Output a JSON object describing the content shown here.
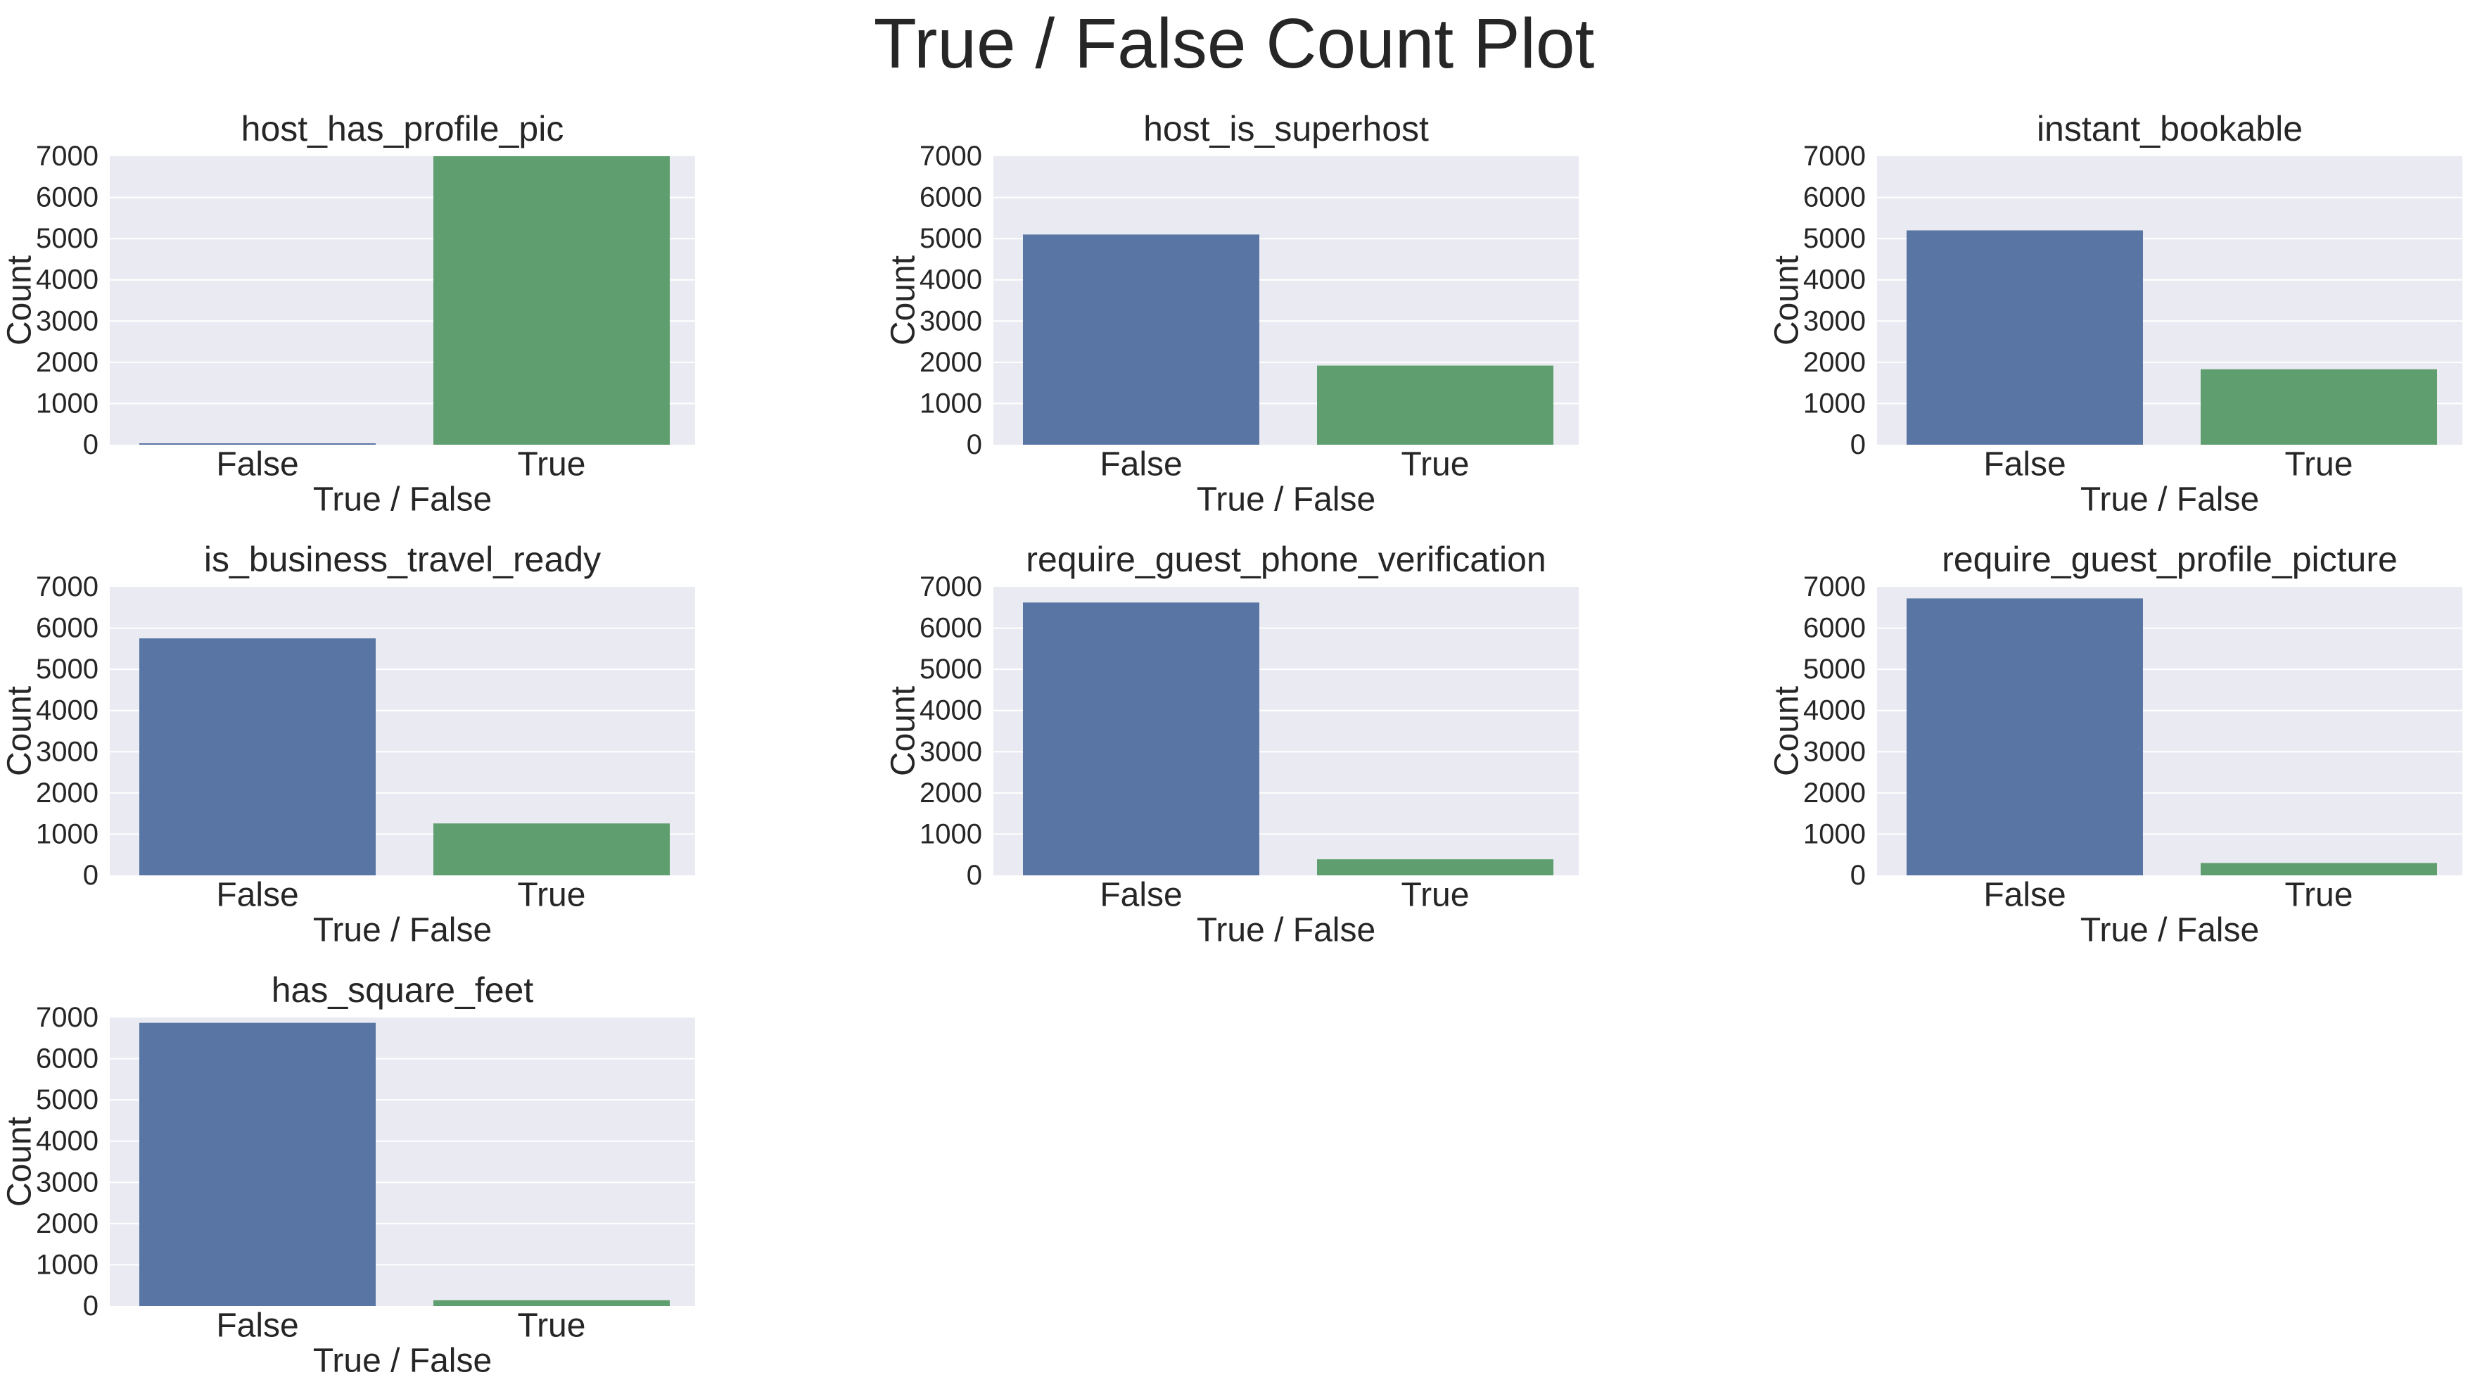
{
  "suptitle": "True / False Count Plot",
  "colors": {
    "background": "#ffffff",
    "axes_face": "#EAEAF2",
    "grid": "#ffffff",
    "false_bar": "#5975A4",
    "true_bar": "#5F9E6E",
    "text": "#262626"
  },
  "chart_data": [
    {
      "type": "bar",
      "title": "host_has_profile_pic",
      "xlabel": "True / False",
      "ylabel": "Count",
      "categories": [
        "False",
        "True"
      ],
      "values": [
        20,
        7010
      ],
      "ylim": [
        0,
        7000
      ],
      "yticks": [
        0,
        1000,
        2000,
        3000,
        4000,
        5000,
        6000,
        7000
      ],
      "grid": true
    },
    {
      "type": "bar",
      "title": "host_is_superhost",
      "xlabel": "True / False",
      "ylabel": "Count",
      "categories": [
        "False",
        "True"
      ],
      "values": [
        5100,
        1920
      ],
      "ylim": [
        0,
        7000
      ],
      "yticks": [
        0,
        1000,
        2000,
        3000,
        4000,
        5000,
        6000,
        7000
      ],
      "grid": true
    },
    {
      "type": "bar",
      "title": "instant_bookable",
      "xlabel": "True / False",
      "ylabel": "Count",
      "categories": [
        "False",
        "True"
      ],
      "values": [
        5200,
        1830
      ],
      "ylim": [
        0,
        7000
      ],
      "yticks": [
        0,
        1000,
        2000,
        3000,
        4000,
        5000,
        6000,
        7000
      ],
      "grid": true
    },
    {
      "type": "bar",
      "title": "is_business_travel_ready",
      "xlabel": "True / False",
      "ylabel": "Count",
      "categories": [
        "False",
        "True"
      ],
      "values": [
        5750,
        1260
      ],
      "ylim": [
        0,
        7000
      ],
      "yticks": [
        0,
        1000,
        2000,
        3000,
        4000,
        5000,
        6000,
        7000
      ],
      "grid": true
    },
    {
      "type": "bar",
      "title": "require_guest_phone_verification",
      "xlabel": "True / False",
      "ylabel": "Count",
      "categories": [
        "False",
        "True"
      ],
      "values": [
        6620,
        390
      ],
      "ylim": [
        0,
        7000
      ],
      "yticks": [
        0,
        1000,
        2000,
        3000,
        4000,
        5000,
        6000,
        7000
      ],
      "grid": true
    },
    {
      "type": "bar",
      "title": "require_guest_profile_picture",
      "xlabel": "True / False",
      "ylabel": "Count",
      "categories": [
        "False",
        "True"
      ],
      "values": [
        6720,
        300
      ],
      "ylim": [
        0,
        7000
      ],
      "yticks": [
        0,
        1000,
        2000,
        3000,
        4000,
        5000,
        6000,
        7000
      ],
      "grid": true
    },
    {
      "type": "bar",
      "title": "has_square_feet",
      "xlabel": "True / False",
      "ylabel": "Count",
      "categories": [
        "False",
        "True"
      ],
      "values": [
        6870,
        140
      ],
      "ylim": [
        0,
        7000
      ],
      "yticks": [
        0,
        1000,
        2000,
        3000,
        4000,
        5000,
        6000,
        7000
      ],
      "grid": true
    }
  ]
}
